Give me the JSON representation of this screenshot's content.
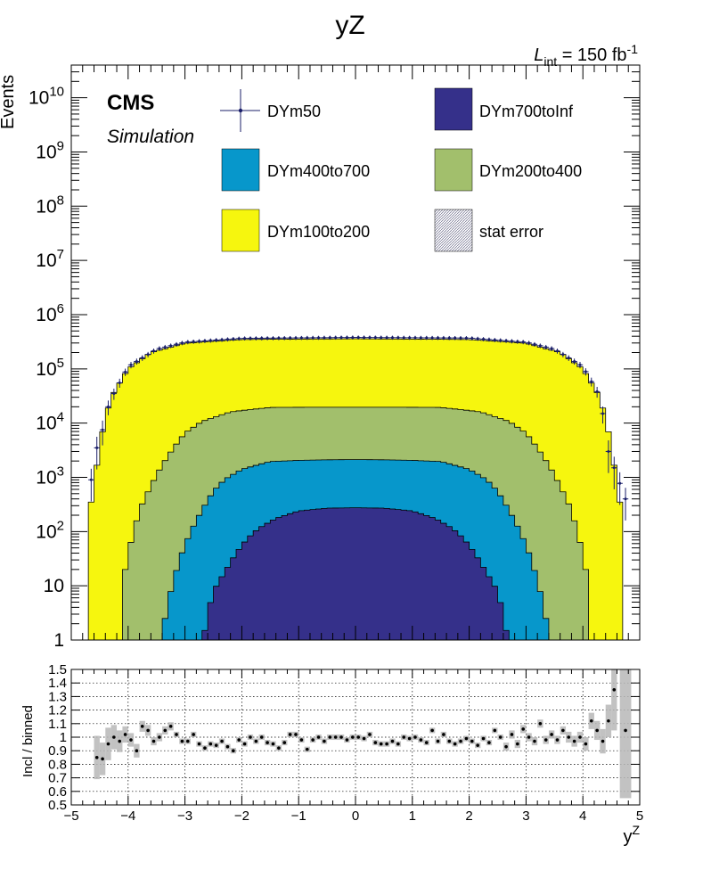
{
  "title": "yZ",
  "lumi": {
    "prefix": "L",
    "sub": "int",
    "mid": " = 150 fb",
    "sup": "-1"
  },
  "cms_label": "CMS",
  "sim_label": "Simulation",
  "colors": {
    "DYm700toInf": "#35308a",
    "DYm400to700": "#0797cb",
    "DYm200to400": "#a2bf6c",
    "DYm100to200": "#f6f60e",
    "DYm50": "#1b1f6a",
    "stat": "#b7b7b7"
  },
  "legend": [
    {
      "key": "DYm50",
      "label": "DYm50",
      "style": "marker"
    },
    {
      "key": "DYm700toInf",
      "label": "DYm700toInf",
      "style": "box"
    },
    {
      "key": "DYm400to700",
      "label": "DYm400to700",
      "style": "box"
    },
    {
      "key": "DYm200to400",
      "label": "DYm200to400",
      "style": "box"
    },
    {
      "key": "DYm100to200",
      "label": "DYm100to200",
      "style": "box"
    },
    {
      "key": "stat",
      "label": "stat error",
      "style": "hatch"
    }
  ],
  "chart_data": [
    {
      "type": "area",
      "title": "yZ",
      "xlabel": "",
      "ylabel": "Events",
      "xlim": [
        -5,
        5
      ],
      "ylim": [
        1,
        40000000000
      ],
      "y_scale": "log",
      "y_ticks": [
        1,
        10,
        100,
        1000,
        10000,
        100000,
        1000000,
        10000000,
        100000000,
        1000000000,
        10000000000
      ],
      "y_tick_labels": [
        "1",
        "10",
        "10^2",
        "10^3",
        "10^4",
        "10^5",
        "10^6",
        "10^7",
        "10^8",
        "10^9",
        "10^10"
      ],
      "grid": false,
      "stacked": true,
      "bin_edges_range": [
        -5,
        5
      ],
      "bin_count": 100,
      "series": [
        {
          "name": "DYm100to200",
          "plateau": 330000,
          "edges": [
            -4.7,
            4.7
          ],
          "shape": [
            [
              4.7,
              0
            ],
            [
              4.6,
              700
            ],
            [
              4.5,
              4000
            ],
            [
              4.4,
              12000
            ],
            [
              4.3,
              30000
            ],
            [
              4.0,
              100000
            ],
            [
              3.6,
              200000
            ],
            [
              3.0,
              290000
            ],
            [
              2.0,
              330000
            ],
            [
              0,
              340000
            ]
          ]
        },
        {
          "name": "DYm200to400",
          "plateau": 17000,
          "edges": [
            -4.1,
            4.1
          ],
          "shape": [
            [
              4.1,
              0
            ],
            [
              4.0,
              40
            ],
            [
              3.8,
              250
            ],
            [
              3.6,
              700
            ],
            [
              3.4,
              1700
            ],
            [
              3.2,
              3500
            ],
            [
              3.0,
              6500
            ],
            [
              2.7,
              10500
            ],
            [
              2.2,
              15000
            ],
            [
              1.5,
              17500
            ],
            [
              0,
              17500
            ]
          ]
        },
        {
          "name": "DYm400to700",
          "plateau": 1850,
          "edges": [
            -3.4,
            3.4
          ],
          "shape": [
            [
              3.4,
              0
            ],
            [
              3.3,
              5
            ],
            [
              3.1,
              30
            ],
            [
              2.9,
              100
            ],
            [
              2.7,
              250
            ],
            [
              2.5,
              550
            ],
            [
              2.3,
              900
            ],
            [
              2.0,
              1350
            ],
            [
              1.5,
              1800
            ],
            [
              0,
              1850
            ]
          ]
        },
        {
          "name": "DYm700toInf",
          "plateau": 270,
          "edges": [
            -2.7,
            2.7
          ],
          "shape": [
            [
              2.7,
              0
            ],
            [
              2.6,
              3
            ],
            [
              2.5,
              8
            ],
            [
              2.3,
              18
            ],
            [
              2.1,
              40
            ],
            [
              1.9,
              75
            ],
            [
              1.7,
              115
            ],
            [
              1.4,
              175
            ],
            [
              1.0,
              240
            ],
            [
              0.5,
              270
            ],
            [
              0,
              275
            ]
          ]
        }
      ],
      "points_series": {
        "name": "DYm50",
        "description_values": [
          [
            -4.65,
            900
          ],
          [
            -4.55,
            3500
          ],
          [
            -4.45,
            7500
          ],
          [
            -4.35,
            20000
          ],
          [
            -4.25,
            35000
          ],
          [
            -4.0,
            110000
          ],
          [
            -3.5,
            230000
          ],
          [
            -3.0,
            310000
          ],
          [
            -2.0,
            365000
          ],
          [
            0,
            380000
          ],
          [
            2.0,
            370000
          ],
          [
            3.0,
            310000
          ],
          [
            3.5,
            230000
          ],
          [
            4.0,
            110000
          ],
          [
            4.25,
            38000
          ],
          [
            4.35,
            15000
          ],
          [
            4.45,
            3000
          ],
          [
            4.55,
            1500
          ],
          [
            4.75,
            400
          ]
        ]
      }
    },
    {
      "type": "scatter",
      "xlabel": "y^Z",
      "ylabel": "Incl / binned",
      "xlim": [
        -5,
        5
      ],
      "ylim": [
        0.5,
        1.5
      ],
      "x_ticks": [
        -5,
        -4,
        -3,
        -2,
        -1,
        0,
        1,
        2,
        3,
        4,
        5
      ],
      "x_tick_labels": [
        "−5",
        "−4",
        "−3",
        "−2",
        "−1",
        "0",
        "1",
        "2",
        "3",
        "4",
        "5"
      ],
      "y_ticks": [
        0.5,
        0.6,
        0.7,
        0.8,
        0.9,
        1.0,
        1.1,
        1.2,
        1.3,
        1.4,
        1.5
      ],
      "y_tick_labels": [
        "0.5",
        "0.6",
        "0.7",
        "0.8",
        "0.9",
        "1",
        "1.1",
        "1.2",
        "1.3",
        "1.4",
        "1.5"
      ],
      "grid": true,
      "ratio": [
        [
          -4.55,
          0.85,
          0.16
        ],
        [
          -4.45,
          0.84,
          0.12
        ],
        [
          -4.35,
          0.95,
          0.12
        ],
        [
          -4.25,
          1.0,
          0.09
        ],
        [
          -4.15,
          0.97,
          0.08
        ],
        [
          -4.05,
          1.02,
          0.06
        ],
        [
          -3.95,
          0.98,
          0.05
        ],
        [
          -3.85,
          0.9,
          0.05
        ],
        [
          -3.75,
          1.08,
          0.04
        ],
        [
          -3.65,
          1.05,
          0.04
        ],
        [
          -3.55,
          0.97,
          0.03
        ],
        [
          -3.45,
          1.0,
          0.03
        ],
        [
          -3.35,
          1.05,
          0.03
        ],
        [
          -3.25,
          1.08,
          0.03
        ],
        [
          -3.15,
          1.02,
          0.02
        ],
        [
          -3.05,
          0.97,
          0.02
        ],
        [
          -2.95,
          0.97,
          0.02
        ],
        [
          -2.85,
          1.02,
          0.02
        ],
        [
          -2.75,
          0.95,
          0.02
        ],
        [
          -2.65,
          0.92,
          0.02
        ],
        [
          -2.55,
          0.95,
          0.02
        ],
        [
          -2.45,
          0.94,
          0.02
        ],
        [
          -2.35,
          0.97,
          0.02
        ],
        [
          -2.25,
          0.93,
          0.02
        ],
        [
          -2.15,
          0.9,
          0.02
        ],
        [
          -2.05,
          0.98,
          0.02
        ],
        [
          -1.95,
          0.95,
          0.02
        ],
        [
          -1.85,
          1.0,
          0.02
        ],
        [
          -1.75,
          0.97,
          0.02
        ],
        [
          -1.65,
          1.0,
          0.02
        ],
        [
          -1.55,
          0.96,
          0.02
        ],
        [
          -1.45,
          0.95,
          0.02
        ],
        [
          -1.35,
          0.92,
          0.02
        ],
        [
          -1.25,
          0.96,
          0.02
        ],
        [
          -1.15,
          1.02,
          0.02
        ],
        [
          -1.05,
          1.02,
          0.02
        ],
        [
          -0.95,
          0.98,
          0.02
        ],
        [
          -0.85,
          0.91,
          0.02
        ],
        [
          -0.75,
          0.98,
          0.02
        ],
        [
          -0.65,
          1.0,
          0.02
        ],
        [
          -0.55,
          0.97,
          0.02
        ],
        [
          -0.45,
          1.0,
          0.02
        ],
        [
          -0.35,
          1.0,
          0.02
        ],
        [
          -0.25,
          1.0,
          0.02
        ],
        [
          -0.15,
          0.98,
          0.02
        ],
        [
          -0.05,
          1.0,
          0.02
        ],
        [
          0.05,
          1.0,
          0.02
        ],
        [
          0.15,
          0.99,
          0.02
        ],
        [
          0.25,
          1.02,
          0.02
        ],
        [
          0.35,
          0.96,
          0.02
        ],
        [
          0.45,
          0.95,
          0.02
        ],
        [
          0.55,
          0.95,
          0.02
        ],
        [
          0.65,
          0.97,
          0.02
        ],
        [
          0.75,
          0.95,
          0.02
        ],
        [
          0.85,
          1.0,
          0.02
        ],
        [
          0.95,
          0.99,
          0.02
        ],
        [
          1.05,
          1.0,
          0.02
        ],
        [
          1.15,
          0.98,
          0.02
        ],
        [
          1.25,
          0.96,
          0.02
        ],
        [
          1.35,
          1.05,
          0.02
        ],
        [
          1.45,
          0.97,
          0.02
        ],
        [
          1.55,
          1.02,
          0.02
        ],
        [
          1.65,
          0.97,
          0.02
        ],
        [
          1.75,
          0.95,
          0.02
        ],
        [
          1.85,
          0.97,
          0.02
        ],
        [
          1.95,
          0.99,
          0.02
        ],
        [
          2.05,
          0.97,
          0.02
        ],
        [
          2.15,
          0.94,
          0.02
        ],
        [
          2.25,
          0.99,
          0.02
        ],
        [
          2.35,
          0.96,
          0.02
        ],
        [
          2.45,
          1.05,
          0.02
        ],
        [
          2.55,
          1.0,
          0.02
        ],
        [
          2.65,
          0.93,
          0.03
        ],
        [
          2.75,
          1.02,
          0.03
        ],
        [
          2.85,
          0.95,
          0.03
        ],
        [
          2.95,
          1.06,
          0.03
        ],
        [
          3.05,
          1.0,
          0.03
        ],
        [
          3.15,
          0.97,
          0.03
        ],
        [
          3.25,
          1.1,
          0.03
        ],
        [
          3.35,
          0.98,
          0.03
        ],
        [
          3.45,
          1.02,
          0.03
        ],
        [
          3.55,
          0.98,
          0.03
        ],
        [
          3.65,
          1.05,
          0.03
        ],
        [
          3.75,
          1.0,
          0.04
        ],
        [
          3.85,
          0.97,
          0.04
        ],
        [
          3.95,
          1.0,
          0.04
        ],
        [
          4.05,
          0.95,
          0.05
        ],
        [
          4.15,
          1.12,
          0.06
        ],
        [
          4.25,
          1.05,
          0.07
        ],
        [
          4.35,
          0.97,
          0.09
        ],
        [
          4.45,
          1.12,
          0.12
        ],
        [
          4.55,
          1.35,
          0.3
        ],
        [
          4.75,
          1.05,
          0.5
        ]
      ]
    }
  ]
}
